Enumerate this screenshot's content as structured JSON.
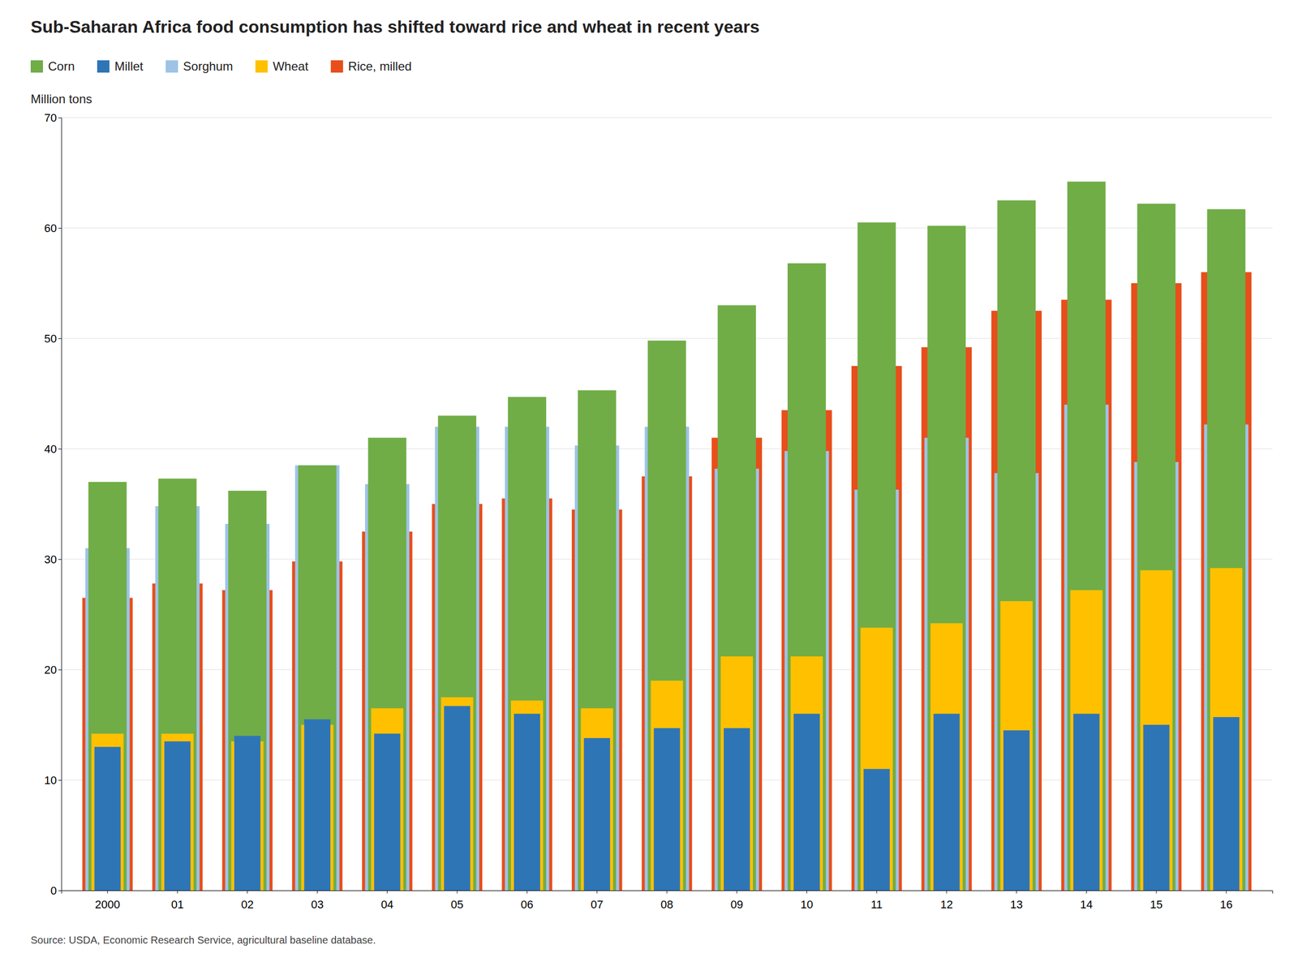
{
  "chart_data": {
    "type": "bar",
    "title": "Sub-Saharan Africa food consumption has shifted toward rice and wheat in recent years",
    "y_label": "Million tons",
    "annotations": [
      "Source: USDA, Economic Research Service, agricultural baseline database."
    ],
    "categories": [
      "2000",
      "01",
      "02",
      "03",
      "04",
      "05",
      "06",
      "07",
      "08",
      "09",
      "10",
      "11",
      "12",
      "13",
      "14",
      "15",
      "16"
    ],
    "series": [
      {
        "name": "Corn",
        "color": "#70ad47",
        "values": [
          37.0,
          37.3,
          36.2,
          38.5,
          41.0,
          43.0,
          44.7,
          45.3,
          49.8,
          53.0,
          56.8,
          60.5,
          60.2,
          62.5,
          64.2,
          62.2,
          61.7
        ]
      },
      {
        "name": "Millet",
        "color": "#2e75b6",
        "values": [
          13.0,
          13.5,
          14.0,
          15.5,
          14.2,
          16.7,
          16.0,
          13.8,
          14.7,
          14.7,
          16.0,
          11.0,
          16.0,
          14.5,
          16.0,
          15.0,
          15.7
        ]
      },
      {
        "name": "Sorghum",
        "color": "#9dc3e6",
        "values": [
          31.0,
          34.8,
          33.2,
          38.5,
          36.8,
          42.0,
          42.0,
          40.3,
          42.0,
          38.2,
          39.8,
          36.3,
          41.0,
          37.8,
          44.0,
          38.8,
          42.2
        ]
      },
      {
        "name": "Wheat",
        "color": "#ffc000",
        "values": [
          14.2,
          14.2,
          13.5,
          15.0,
          16.5,
          17.5,
          17.2,
          16.5,
          19.0,
          21.2,
          21.2,
          23.8,
          24.2,
          26.2,
          27.2,
          29.0,
          29.2
        ]
      },
      {
        "name": "Rice, milled",
        "color": "#e84e1b",
        "values": [
          26.5,
          27.8,
          27.2,
          29.8,
          32.5,
          35.0,
          35.5,
          34.5,
          37.5,
          41.0,
          43.5,
          47.5,
          49.2,
          52.5,
          53.5,
          55.0,
          56.0
        ]
      }
    ],
    "ylim": [
      0,
      70
    ],
    "yticks": [
      0,
      10,
      20,
      30,
      40,
      50,
      60,
      70
    ],
    "grid": true,
    "legend": "upper left",
    "stacked": false
  }
}
